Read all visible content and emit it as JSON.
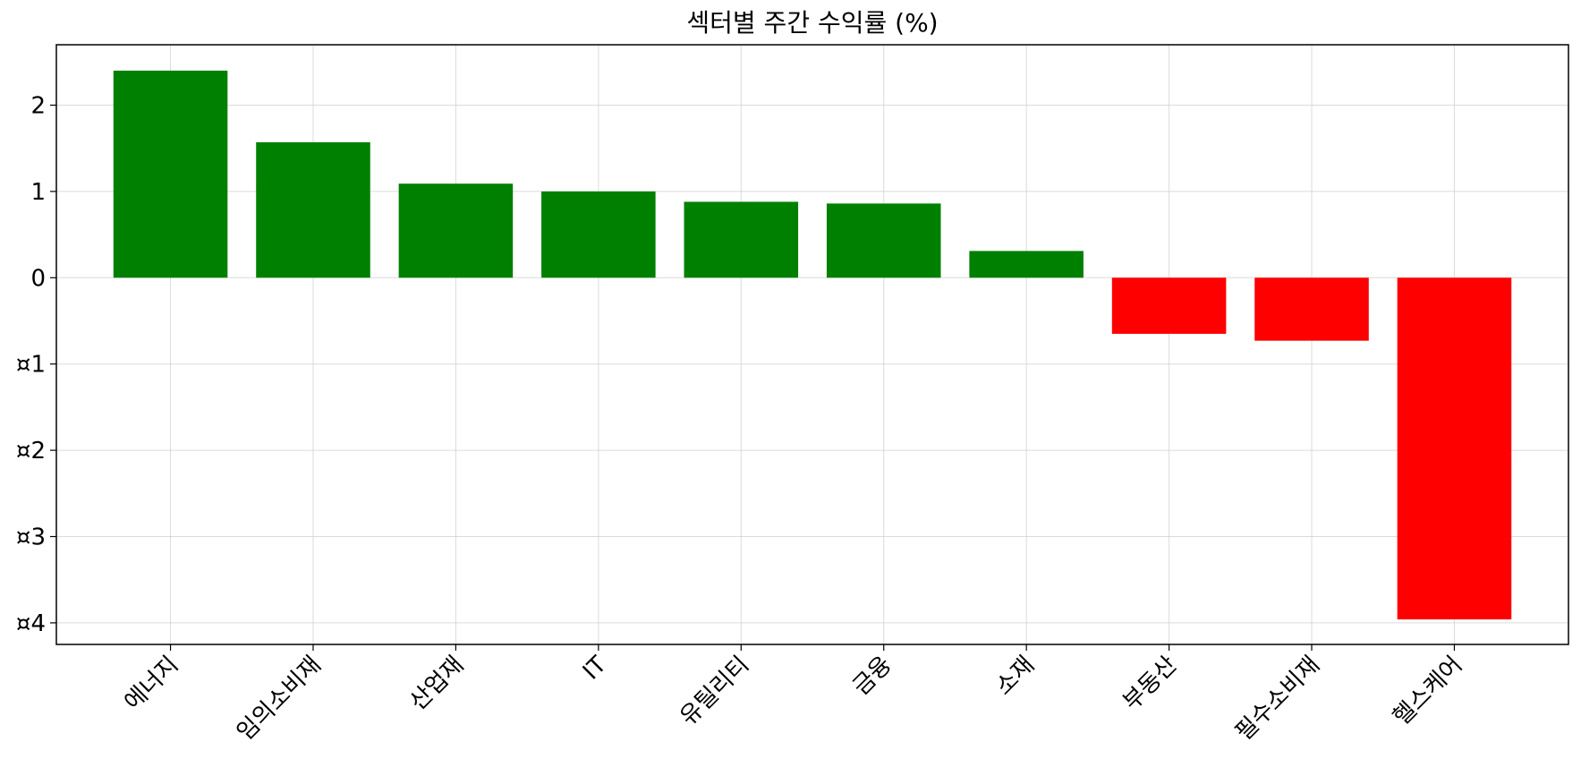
{
  "chart_data": {
    "type": "bar",
    "title": "섹터별 주간 수익률 (%)",
    "xlabel": "",
    "ylabel": "",
    "categories": [
      "에너지",
      "임의소비재",
      "산업재",
      "IT",
      "유틸리티",
      "금융",
      "소재",
      "부동산",
      "필수소비재",
      "헬스케어"
    ],
    "values": [
      2.4,
      1.57,
      1.09,
      1.0,
      0.88,
      0.86,
      0.31,
      -0.65,
      -0.73,
      -3.96
    ],
    "bar_colors": [
      "#008000",
      "#008000",
      "#008000",
      "#008000",
      "#008000",
      "#008000",
      "#008000",
      "#ff0000",
      "#ff0000",
      "#ff0000"
    ],
    "positive_color": "#008000",
    "negative_color": "#ff0000",
    "ylim": [
      -4.25,
      2.7
    ],
    "yticks": [
      2,
      1,
      0,
      -1,
      -2,
      -3,
      -4
    ],
    "ytick_labels": [
      "2",
      "1",
      "0",
      "¤1",
      "¤2",
      "¤3",
      "¤4"
    ],
    "grid": true,
    "x_tick_rotation": "45°"
  }
}
